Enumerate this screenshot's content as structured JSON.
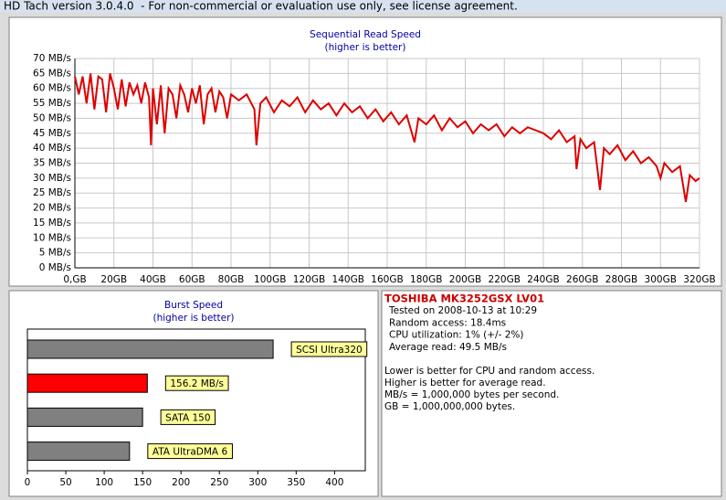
{
  "window": {
    "title": "HD Tach version 3.0.4.0  - For non-commercial or evaluation use only, see license agreement."
  },
  "chart_data": [
    {
      "type": "line",
      "title": "Sequential Read Speed",
      "subtitle": "(higher is better)",
      "color": "#dd0000",
      "grid": true,
      "x": [
        0,
        2,
        4,
        6,
        8,
        10,
        12,
        14,
        16,
        18,
        20,
        22,
        24,
        26,
        28,
        30,
        32,
        34,
        36,
        38,
        39,
        40,
        42,
        44,
        46,
        48,
        50,
        52,
        54,
        56,
        58,
        60,
        62,
        64,
        66,
        68,
        70,
        72,
        74,
        76,
        78,
        80,
        84,
        88,
        92,
        93,
        95,
        98,
        102,
        106,
        110,
        114,
        118,
        122,
        126,
        130,
        134,
        138,
        142,
        146,
        150,
        154,
        158,
        162,
        166,
        170,
        174,
        176,
        180,
        184,
        188,
        192,
        196,
        200,
        204,
        208,
        212,
        216,
        220,
        224,
        228,
        232,
        236,
        240,
        244,
        248,
        252,
        256,
        257,
        259,
        262,
        266,
        269,
        271,
        274,
        278,
        282,
        286,
        290,
        294,
        298,
        300,
        302,
        306,
        310,
        313,
        315,
        318,
        320
      ],
      "values": [
        64,
        58,
        64,
        55,
        65,
        53,
        64,
        63,
        52,
        65,
        60,
        53,
        63,
        54,
        62,
        58,
        61,
        55,
        62,
        57,
        41,
        60,
        48,
        61,
        45,
        60,
        58,
        50,
        61,
        58,
        52,
        60,
        55,
        61,
        48,
        58,
        60,
        52,
        59,
        57,
        50,
        58,
        56,
        58,
        53,
        41,
        55,
        57,
        52,
        56,
        54,
        57,
        52,
        56,
        53,
        55,
        51,
        55,
        52,
        54,
        50,
        53,
        49,
        52,
        48,
        51,
        42,
        50,
        48,
        51,
        46,
        50,
        47,
        49,
        45,
        48,
        46,
        48,
        44,
        47,
        45,
        47,
        46,
        45,
        43,
        46,
        42,
        44,
        33,
        43,
        40,
        42,
        26,
        40,
        38,
        41,
        36,
        39,
        35,
        37,
        34,
        30,
        35,
        32,
        34,
        22,
        31,
        29,
        30
      ],
      "xlim": [
        0,
        320
      ],
      "xticks": [
        {
          "value": 0,
          "label": "0,GB"
        },
        {
          "value": 20,
          "label": "20GB"
        },
        {
          "value": 40,
          "label": "40GB"
        },
        {
          "value": 60,
          "label": "60GB"
        },
        {
          "value": 80,
          "label": "80GB"
        },
        {
          "value": 100,
          "label": "100GB"
        },
        {
          "value": 120,
          "label": "120GB"
        },
        {
          "value": 140,
          "label": "140GB"
        },
        {
          "value": 160,
          "label": "160GB"
        },
        {
          "value": 180,
          "label": "180GB"
        },
        {
          "value": 200,
          "label": "200GB"
        },
        {
          "value": 220,
          "label": "220GB"
        },
        {
          "value": 240,
          "label": "240GB"
        },
        {
          "value": 260,
          "label": "260GB"
        },
        {
          "value": 280,
          "label": "280GB"
        },
        {
          "value": 300,
          "label": "300GB"
        },
        {
          "value": 320,
          "label": "320GB"
        }
      ],
      "ylim": [
        0,
        70
      ],
      "yticks": [
        {
          "value": 0,
          "label": "0 MB/s"
        },
        {
          "value": 5,
          "label": "5 MB/s"
        },
        {
          "value": 10,
          "label": "10 MB/s"
        },
        {
          "value": 15,
          "label": "15 MB/s"
        },
        {
          "value": 20,
          "label": "20 MB/s"
        },
        {
          "value": 25,
          "label": "25 MB/s"
        },
        {
          "value": 30,
          "label": "30 MB/s"
        },
        {
          "value": 35,
          "label": "35 MB/s"
        },
        {
          "value": 40,
          "label": "40 MB/s"
        },
        {
          "value": 45,
          "label": "45 MB/s"
        },
        {
          "value": 50,
          "label": "50 MB/s"
        },
        {
          "value": 55,
          "label": "55 MB/s"
        },
        {
          "value": 60,
          "label": "60 MB/s"
        },
        {
          "value": 65,
          "label": "65 MB/s"
        },
        {
          "value": 70,
          "label": "70 MB/s"
        }
      ]
    },
    {
      "type": "hbar",
      "title": "Burst Speed",
      "subtitle": "(higher is better)",
      "categories": [
        "SCSI Ultra320",
        null,
        "SATA 150",
        "ATA UltraDMA 6"
      ],
      "values": [
        320,
        156.2,
        150,
        133
      ],
      "value_labels": [
        null,
        "156.2 MB/s",
        null,
        null
      ],
      "colors": [
        "#808080",
        "#ff0000",
        "#808080",
        "#808080"
      ],
      "xlim": [
        0,
        440
      ],
      "xticks": [
        0,
        50,
        100,
        150,
        200,
        250,
        300,
        350,
        400
      ]
    }
  ],
  "info": {
    "drive": "TOSHIBA MK3252GSX LV01",
    "details": [
      "Tested on 2008-10-13 at 10:29",
      "Random access: 18.4ms",
      "CPU utilization: 1% (+/- 2%)",
      "Average read: 49.5 MB/s"
    ],
    "notes": [
      "Lower is better for CPU and random access.",
      "Higher is better for average read.",
      "MB/s = 1,000,000 bytes per second.",
      "GB = 1,000,000,000 bytes."
    ]
  }
}
